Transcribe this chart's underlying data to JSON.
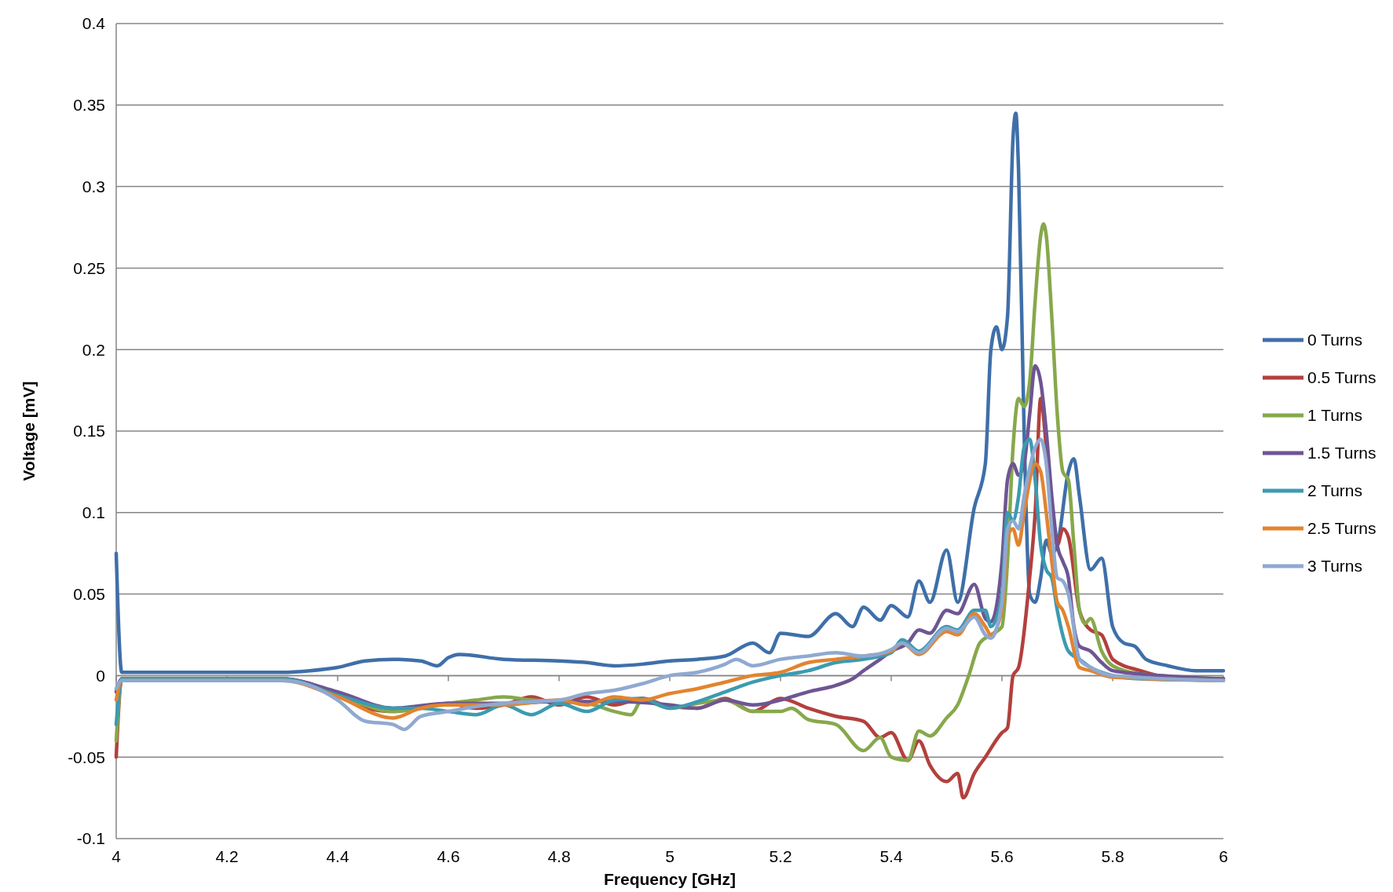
{
  "chart_data": {
    "type": "line",
    "xlabel": "Frequency [GHz]",
    "ylabel": "Voltage [mV]",
    "xlim": [
      4,
      6
    ],
    "xticks": [
      4,
      4.2,
      4.4,
      4.6,
      4.8,
      5,
      5.2,
      5.4,
      5.6,
      5.8,
      6
    ],
    "ylim": [
      -0.1,
      0.4
    ],
    "yticks": [
      -0.1,
      -0.05,
      0,
      0.05,
      0.1,
      0.15,
      0.2,
      0.25,
      0.3,
      0.35,
      0.4
    ],
    "grid": "y",
    "legend": "right",
    "marker": "none",
    "line_style": "solid",
    "series": [
      {
        "name": "0 Turns",
        "color": "#3f6fa9",
        "x": [
          4,
          4.01,
          4.3,
          4.35,
          4.4,
          4.45,
          4.5,
          4.55,
          4.58,
          4.6,
          4.62,
          4.7,
          4.8,
          4.85,
          4.9,
          4.95,
          5,
          5.05,
          5.1,
          5.15,
          5.18,
          5.2,
          5.25,
          5.3,
          5.33,
          5.35,
          5.38,
          5.4,
          5.43,
          5.45,
          5.47,
          5.5,
          5.52,
          5.55,
          5.57,
          5.58,
          5.59,
          5.6,
          5.61,
          5.62,
          5.625,
          5.63,
          5.64,
          5.65,
          5.66,
          5.67,
          5.68,
          5.69,
          5.7,
          5.72,
          5.73,
          5.74,
          5.76,
          5.78,
          5.8,
          5.82,
          5.84,
          5.86,
          5.9,
          5.95,
          6
        ],
        "values": [
          0.075,
          0.002,
          0.002,
          0.003,
          0.005,
          0.009,
          0.01,
          0.009,
          0.006,
          0.011,
          0.013,
          0.01,
          0.009,
          0.008,
          0.006,
          0.007,
          0.009,
          0.01,
          0.012,
          0.02,
          0.014,
          0.026,
          0.024,
          0.038,
          0.03,
          0.042,
          0.034,
          0.043,
          0.036,
          0.058,
          0.045,
          0.077,
          0.045,
          0.103,
          0.13,
          0.2,
          0.214,
          0.2,
          0.22,
          0.33,
          0.345,
          0.31,
          0.15,
          0.05,
          0.045,
          0.06,
          0.083,
          0.075,
          0.08,
          0.125,
          0.133,
          0.11,
          0.065,
          0.072,
          0.03,
          0.02,
          0.018,
          0.01,
          0.006,
          0.003,
          0.003
        ]
      },
      {
        "name": "0.5 Turns",
        "color": "#b3403d",
        "x": [
          4,
          4.01,
          4.3,
          4.35,
          4.4,
          4.45,
          4.5,
          4.55,
          4.6,
          4.65,
          4.7,
          4.75,
          4.8,
          4.85,
          4.9,
          4.95,
          5,
          5.05,
          5.1,
          5.15,
          5.2,
          5.25,
          5.3,
          5.35,
          5.38,
          5.4,
          5.43,
          5.45,
          5.47,
          5.5,
          5.52,
          5.53,
          5.55,
          5.57,
          5.6,
          5.61,
          5.62,
          5.63,
          5.65,
          5.66,
          5.67,
          5.68,
          5.69,
          5.7,
          5.71,
          5.72,
          5.74,
          5.76,
          5.78,
          5.8,
          5.85,
          5.9,
          6
        ],
        "values": [
          -0.05,
          -0.002,
          -0.002,
          -0.005,
          -0.012,
          -0.02,
          -0.022,
          -0.02,
          -0.017,
          -0.02,
          -0.018,
          -0.013,
          -0.018,
          -0.013,
          -0.018,
          -0.014,
          -0.019,
          -0.02,
          -0.014,
          -0.022,
          -0.014,
          -0.02,
          -0.025,
          -0.028,
          -0.038,
          -0.035,
          -0.052,
          -0.04,
          -0.055,
          -0.065,
          -0.06,
          -0.075,
          -0.06,
          -0.05,
          -0.035,
          -0.032,
          0,
          0.005,
          0.06,
          0.1,
          0.17,
          0.14,
          0.1,
          0.08,
          0.09,
          0.085,
          0.04,
          0.028,
          0.025,
          0.01,
          0.003,
          -0.001,
          -0.002
        ]
      },
      {
        "name": "1 Turns",
        "color": "#87a84b",
        "x": [
          4,
          4.01,
          4.3,
          4.4,
          4.5,
          4.6,
          4.65,
          4.7,
          4.75,
          4.8,
          4.85,
          4.9,
          4.93,
          4.95,
          5,
          5.05,
          5.1,
          5.15,
          5.2,
          5.22,
          5.25,
          5.3,
          5.35,
          5.38,
          5.4,
          5.43,
          5.45,
          5.47,
          5.5,
          5.52,
          5.54,
          5.56,
          5.58,
          5.6,
          5.61,
          5.62,
          5.63,
          5.64,
          5.65,
          5.66,
          5.67,
          5.675,
          5.68,
          5.69,
          5.7,
          5.71,
          5.72,
          5.73,
          5.74,
          5.75,
          5.76,
          5.78,
          5.8,
          5.85,
          6
        ],
        "values": [
          -0.04,
          -0.002,
          -0.002,
          -0.012,
          -0.022,
          -0.017,
          -0.015,
          -0.013,
          -0.015,
          -0.016,
          -0.017,
          -0.022,
          -0.024,
          -0.015,
          -0.02,
          -0.017,
          -0.015,
          -0.022,
          -0.022,
          -0.02,
          -0.027,
          -0.03,
          -0.046,
          -0.038,
          -0.05,
          -0.052,
          -0.034,
          -0.037,
          -0.026,
          -0.018,
          0,
          0.02,
          0.025,
          0.03,
          0.07,
          0.14,
          0.17,
          0.165,
          0.18,
          0.23,
          0.27,
          0.277,
          0.27,
          0.22,
          0.16,
          0.125,
          0.12,
          0.08,
          0.04,
          0.032,
          0.035,
          0.015,
          0.006,
          0.001,
          -0.002
        ]
      },
      {
        "name": "1.5 Turns",
        "color": "#6e5593",
        "x": [
          4,
          4.01,
          4.3,
          4.4,
          4.5,
          4.6,
          4.7,
          4.8,
          4.9,
          5,
          5.05,
          5.1,
          5.15,
          5.2,
          5.22,
          5.25,
          5.3,
          5.33,
          5.35,
          5.38,
          5.4,
          5.43,
          5.45,
          5.47,
          5.5,
          5.52,
          5.55,
          5.57,
          5.58,
          5.6,
          5.61,
          5.62,
          5.63,
          5.64,
          5.65,
          5.66,
          5.67,
          5.68,
          5.69,
          5.7,
          5.71,
          5.72,
          5.73,
          5.74,
          5.76,
          5.78,
          5.8,
          5.85,
          6
        ],
        "values": [
          -0.01,
          -0.002,
          -0.002,
          -0.01,
          -0.02,
          -0.017,
          -0.017,
          -0.016,
          -0.016,
          -0.018,
          -0.02,
          -0.015,
          -0.018,
          -0.015,
          -0.013,
          -0.01,
          -0.006,
          -0.002,
          0.003,
          0.01,
          0.015,
          0.02,
          0.028,
          0.026,
          0.04,
          0.038,
          0.056,
          0.035,
          0.033,
          0.07,
          0.12,
          0.13,
          0.123,
          0.13,
          0.16,
          0.19,
          0.18,
          0.15,
          0.11,
          0.08,
          0.07,
          0.06,
          0.03,
          0.018,
          0.015,
          0.008,
          0.003,
          0.001,
          -0.002
        ]
      },
      {
        "name": "2 Turns",
        "color": "#3b9bb1",
        "x": [
          4,
          4.01,
          4.3,
          4.4,
          4.5,
          4.55,
          4.6,
          4.65,
          4.7,
          4.75,
          4.8,
          4.85,
          4.9,
          4.95,
          5,
          5.05,
          5.1,
          5.15,
          5.2,
          5.25,
          5.3,
          5.35,
          5.4,
          5.42,
          5.45,
          5.5,
          5.52,
          5.55,
          5.57,
          5.58,
          5.6,
          5.61,
          5.62,
          5.63,
          5.64,
          5.65,
          5.66,
          5.67,
          5.68,
          5.69,
          5.7,
          5.72,
          5.74,
          5.76,
          5.8,
          5.85,
          6
        ],
        "values": [
          -0.03,
          -0.002,
          -0.002,
          -0.012,
          -0.02,
          -0.02,
          -0.022,
          -0.024,
          -0.018,
          -0.024,
          -0.017,
          -0.022,
          -0.015,
          -0.014,
          -0.02,
          -0.016,
          -0.01,
          -0.004,
          0,
          0.003,
          0.008,
          0.01,
          0.014,
          0.022,
          0.015,
          0.03,
          0.028,
          0.04,
          0.04,
          0.03,
          0.05,
          0.1,
          0.095,
          0.11,
          0.14,
          0.145,
          0.12,
          0.08,
          0.065,
          0.06,
          0.04,
          0.015,
          0.01,
          0.005,
          0,
          -0.002,
          -0.003
        ]
      },
      {
        "name": "2.5 Turns",
        "color": "#e2842f",
        "x": [
          4,
          4.01,
          4.3,
          4.4,
          4.5,
          4.55,
          4.6,
          4.7,
          4.8,
          4.85,
          4.9,
          4.95,
          5,
          5.05,
          5.1,
          5.15,
          5.2,
          5.25,
          5.3,
          5.35,
          5.4,
          5.42,
          5.45,
          5.5,
          5.52,
          5.55,
          5.57,
          5.58,
          5.6,
          5.61,
          5.62,
          5.63,
          5.64,
          5.66,
          5.67,
          5.68,
          5.69,
          5.7,
          5.71,
          5.72,
          5.74,
          5.76,
          5.8,
          6
        ],
        "values": [
          -0.015,
          -0.003,
          -0.003,
          -0.013,
          -0.026,
          -0.02,
          -0.018,
          -0.018,
          -0.015,
          -0.018,
          -0.013,
          -0.015,
          -0.011,
          -0.008,
          -0.004,
          0,
          0.002,
          0.008,
          0.01,
          0.012,
          0.015,
          0.02,
          0.013,
          0.027,
          0.025,
          0.038,
          0.03,
          0.025,
          0.04,
          0.085,
          0.09,
          0.08,
          0.1,
          0.13,
          0.125,
          0.1,
          0.07,
          0.045,
          0.04,
          0.03,
          0.005,
          0.003,
          -0.001,
          -0.003
        ]
      },
      {
        "name": "3 Turns",
        "color": "#8fa9d1",
        "x": [
          4,
          4.01,
          4.3,
          4.35,
          4.4,
          4.45,
          4.5,
          4.52,
          4.55,
          4.6,
          4.65,
          4.7,
          4.8,
          4.85,
          4.9,
          4.95,
          5,
          5.05,
          5.1,
          5.12,
          5.15,
          5.2,
          5.25,
          5.3,
          5.35,
          5.4,
          5.42,
          5.45,
          5.5,
          5.52,
          5.55,
          5.57,
          5.58,
          5.6,
          5.61,
          5.62,
          5.63,
          5.64,
          5.66,
          5.67,
          5.68,
          5.69,
          5.7,
          5.71,
          5.72,
          5.74,
          5.76,
          5.8,
          6
        ],
        "values": [
          -0.008,
          -0.003,
          -0.003,
          -0.006,
          -0.015,
          -0.028,
          -0.03,
          -0.033,
          -0.025,
          -0.022,
          -0.019,
          -0.017,
          -0.015,
          -0.011,
          -0.009,
          -0.005,
          0,
          0.002,
          0.007,
          0.01,
          0.006,
          0.01,
          0.012,
          0.014,
          0.012,
          0.016,
          0.02,
          0.014,
          0.029,
          0.027,
          0.036,
          0.025,
          0.023,
          0.045,
          0.09,
          0.095,
          0.09,
          0.11,
          0.14,
          0.145,
          0.13,
          0.09,
          0.06,
          0.058,
          0.05,
          0.01,
          0.005,
          0,
          -0.003
        ]
      }
    ]
  }
}
